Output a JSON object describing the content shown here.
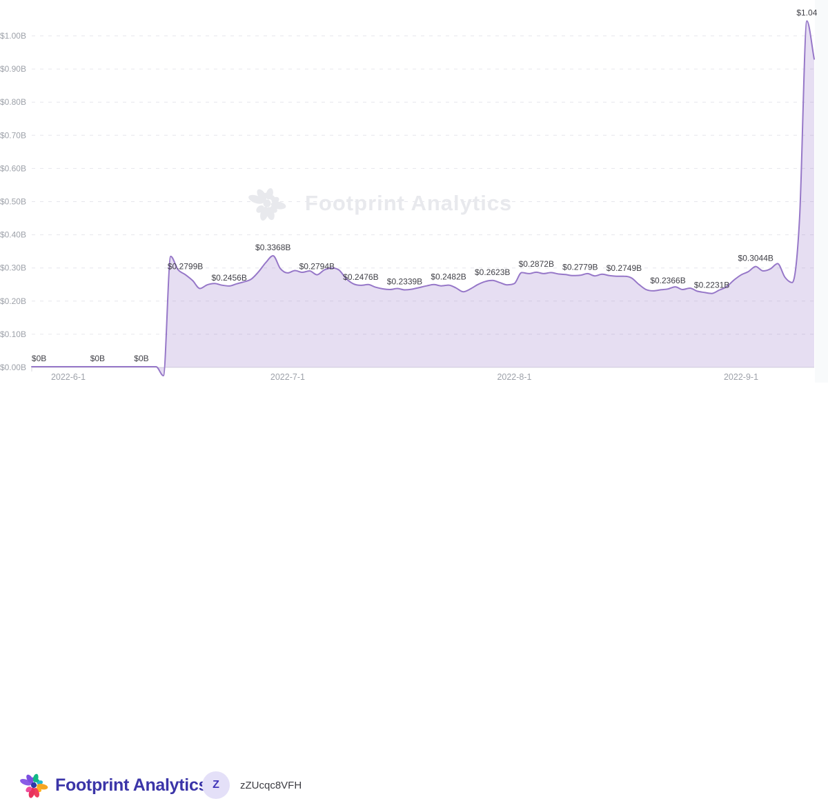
{
  "watermark": {
    "text": "Footprint Analytics"
  },
  "footer": {
    "brand_name": "Footprint Analytics",
    "user_initial": "Z",
    "user_name": "zZUcqc8VFH"
  },
  "colors": {
    "line": "#9677C8",
    "area_fill": "rgba(150,118,200,0.24)",
    "grid": "#E6E6EB",
    "axis_line": "#D9D9DF",
    "axis_text": "#9DA1A9",
    "data_label_text": "#3F3F46",
    "brand_indigo": "#3B35A8",
    "badge_bg": "#E4E0F8",
    "watermark_gray": "#E8E9ED",
    "logo_petals": [
      "#8A5CE6",
      "#7B4FE0",
      "#7B4FE0",
      "#12B886",
      "#12B886",
      "#22B8CF",
      "#F5A623",
      "#FFB020",
      "#F03E5E",
      "#E8325C",
      "#EE4B9B"
    ],
    "logo_center": "#2F3AA6"
  },
  "chart_data": {
    "type": "area",
    "title": "",
    "xlabel": "",
    "ylabel": "",
    "x_start_date": "2022-05-27",
    "x_ticks": [
      {
        "label": "2022-6-1",
        "d": 5
      },
      {
        "label": "2022-7-1",
        "d": 35
      },
      {
        "label": "2022-8-1",
        "d": 66
      },
      {
        "label": "2022-9-1",
        "d": 97
      }
    ],
    "y_ticks": [
      {
        "label": "$0.00B",
        "v": 0.0
      },
      {
        "label": "$0.10B",
        "v": 0.1
      },
      {
        "label": "$0.20B",
        "v": 0.2
      },
      {
        "label": "$0.30B",
        "v": 0.3
      },
      {
        "label": "$0.40B",
        "v": 0.4
      },
      {
        "label": "$0.50B",
        "v": 0.5
      },
      {
        "label": "$0.60B",
        "v": 0.6
      },
      {
        "label": "$0.70B",
        "v": 0.7
      },
      {
        "label": "$0.80B",
        "v": 0.8
      },
      {
        "label": "$0.90B",
        "v": 0.9
      },
      {
        "label": "$1.00B",
        "v": 1.0
      }
    ],
    "y_range": [
      0,
      1.0
    ],
    "unit": "$B",
    "grid": "dashed",
    "legend": "none",
    "points": [
      {
        "d": 0,
        "v": 0.002
      },
      {
        "d": 1,
        "v": 0.002,
        "l": "$0B"
      },
      {
        "d": 5,
        "v": 0.002
      },
      {
        "d": 9,
        "v": 0.002,
        "l": "$0B"
      },
      {
        "d": 12,
        "v": 0.002
      },
      {
        "d": 15,
        "v": 0.002,
        "l": "$0B"
      },
      {
        "d": 17,
        "v": 0.002
      },
      {
        "d": 18,
        "v": -0.025
      },
      {
        "d": 19,
        "v": 0.335
      },
      {
        "d": 20,
        "v": 0.295
      },
      {
        "d": 21,
        "v": 0.2799,
        "l": "$0.2799B"
      },
      {
        "d": 22,
        "v": 0.262
      },
      {
        "d": 23,
        "v": 0.238
      },
      {
        "d": 24,
        "v": 0.249
      },
      {
        "d": 25,
        "v": 0.253
      },
      {
        "d": 26,
        "v": 0.248
      },
      {
        "d": 27,
        "v": 0.2456,
        "l": "$0.2456B"
      },
      {
        "d": 28,
        "v": 0.252
      },
      {
        "d": 29,
        "v": 0.258
      },
      {
        "d": 30,
        "v": 0.266
      },
      {
        "d": 31,
        "v": 0.288
      },
      {
        "d": 32,
        "v": 0.316
      },
      {
        "d": 33,
        "v": 0.3368,
        "l": "$0.3368B"
      },
      {
        "d": 34,
        "v": 0.298
      },
      {
        "d": 35,
        "v": 0.285
      },
      {
        "d": 36,
        "v": 0.292
      },
      {
        "d": 37,
        "v": 0.287
      },
      {
        "d": 38,
        "v": 0.291
      },
      {
        "d": 39,
        "v": 0.2794,
        "l": "$0.2794B"
      },
      {
        "d": 40,
        "v": 0.294
      },
      {
        "d": 41,
        "v": 0.3
      },
      {
        "d": 42,
        "v": 0.294
      },
      {
        "d": 43,
        "v": 0.268
      },
      {
        "d": 44,
        "v": 0.252
      },
      {
        "d": 45,
        "v": 0.2476,
        "l": "$0.2476B"
      },
      {
        "d": 46,
        "v": 0.25
      },
      {
        "d": 47,
        "v": 0.242
      },
      {
        "d": 48,
        "v": 0.237
      },
      {
        "d": 49,
        "v": 0.235
      },
      {
        "d": 50,
        "v": 0.238
      },
      {
        "d": 51,
        "v": 0.2339,
        "l": "$0.2339B"
      },
      {
        "d": 52,
        "v": 0.236
      },
      {
        "d": 53,
        "v": 0.241
      },
      {
        "d": 54,
        "v": 0.246
      },
      {
        "d": 55,
        "v": 0.25
      },
      {
        "d": 56,
        "v": 0.246
      },
      {
        "d": 57,
        "v": 0.2482,
        "l": "$0.2482B"
      },
      {
        "d": 58,
        "v": 0.24
      },
      {
        "d": 59,
        "v": 0.228
      },
      {
        "d": 60,
        "v": 0.237
      },
      {
        "d": 61,
        "v": 0.25
      },
      {
        "d": 62,
        "v": 0.259
      },
      {
        "d": 63,
        "v": 0.2623,
        "l": "$0.2623B"
      },
      {
        "d": 64,
        "v": 0.256
      },
      {
        "d": 65,
        "v": 0.249
      },
      {
        "d": 66,
        "v": 0.253
      },
      {
        "d": 67,
        "v": 0.286
      },
      {
        "d": 68,
        "v": 0.283
      },
      {
        "d": 69,
        "v": 0.2872,
        "l": "$0.2872B"
      },
      {
        "d": 70,
        "v": 0.283
      },
      {
        "d": 71,
        "v": 0.286
      },
      {
        "d": 72,
        "v": 0.282
      },
      {
        "d": 73,
        "v": 0.28
      },
      {
        "d": 74,
        "v": 0.277
      },
      {
        "d": 75,
        "v": 0.2779,
        "l": "$0.2779B"
      },
      {
        "d": 76,
        "v": 0.283
      },
      {
        "d": 77,
        "v": 0.276
      },
      {
        "d": 78,
        "v": 0.281
      },
      {
        "d": 79,
        "v": 0.277
      },
      {
        "d": 80,
        "v": 0.275
      },
      {
        "d": 81,
        "v": 0.2749,
        "l": "$0.2749B"
      },
      {
        "d": 82,
        "v": 0.27
      },
      {
        "d": 83,
        "v": 0.251
      },
      {
        "d": 84,
        "v": 0.235
      },
      {
        "d": 85,
        "v": 0.231
      },
      {
        "d": 86,
        "v": 0.234
      },
      {
        "d": 87,
        "v": 0.2366,
        "l": "$0.2366B"
      },
      {
        "d": 88,
        "v": 0.243
      },
      {
        "d": 89,
        "v": 0.235
      },
      {
        "d": 90,
        "v": 0.239
      },
      {
        "d": 91,
        "v": 0.23
      },
      {
        "d": 92,
        "v": 0.226
      },
      {
        "d": 93,
        "v": 0.2231,
        "l": "$0.2231B"
      },
      {
        "d": 94,
        "v": 0.233
      },
      {
        "d": 95,
        "v": 0.243
      },
      {
        "d": 96,
        "v": 0.263
      },
      {
        "d": 97,
        "v": 0.279
      },
      {
        "d": 98,
        "v": 0.289
      },
      {
        "d": 99,
        "v": 0.3044,
        "l": "$0.3044B"
      },
      {
        "d": 100,
        "v": 0.291
      },
      {
        "d": 101,
        "v": 0.297
      },
      {
        "d": 102,
        "v": 0.313
      },
      {
        "d": 103,
        "v": 0.272
      },
      {
        "d": 104,
        "v": 0.256
      },
      {
        "d": 105,
        "v": 0.45
      },
      {
        "d": 106,
        "v": 1.045,
        "l": "$1.04"
      },
      {
        "d": 107,
        "v": 0.93
      }
    ]
  }
}
